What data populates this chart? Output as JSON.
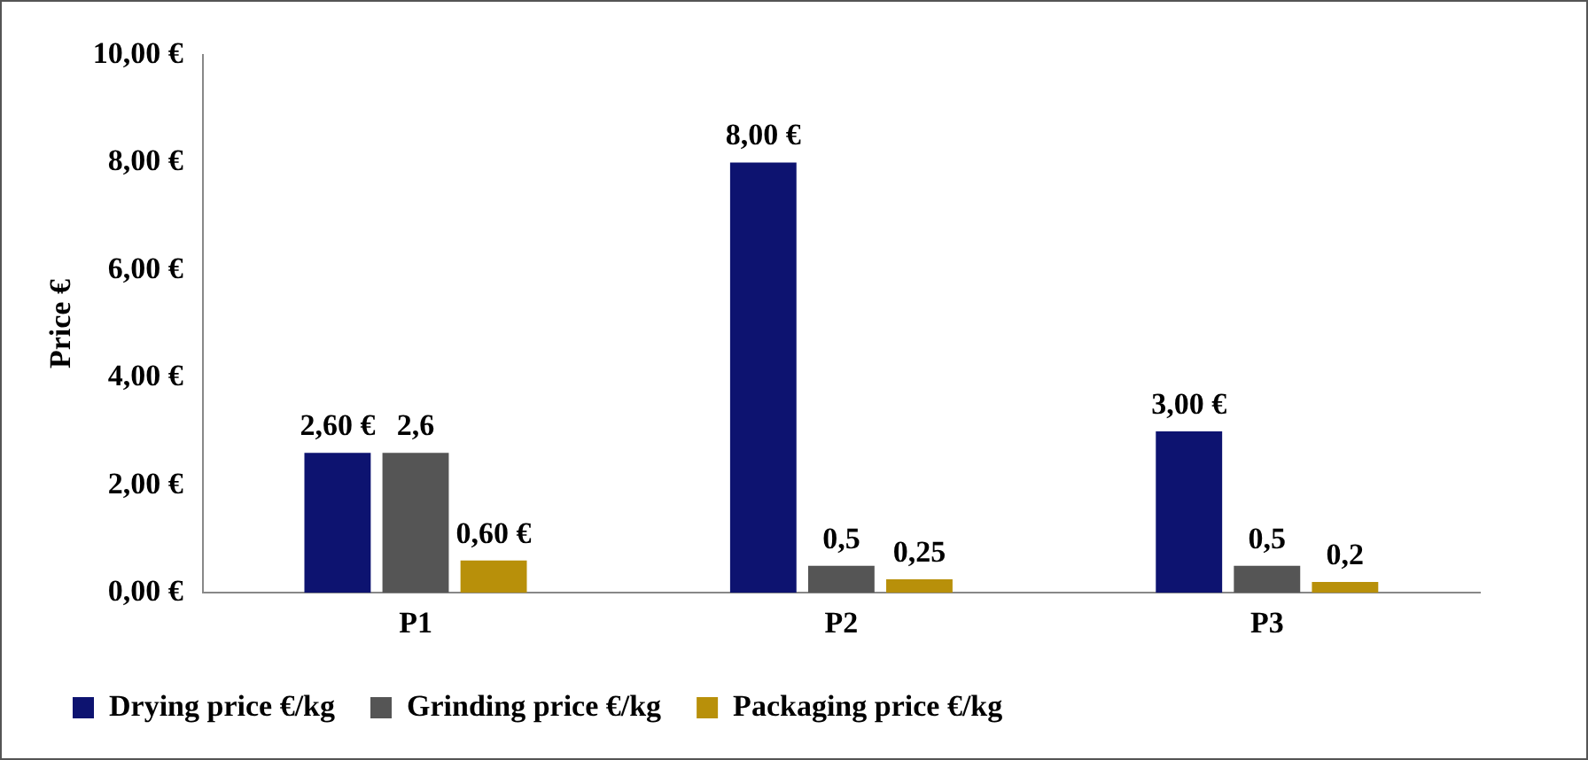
{
  "chart_data": {
    "type": "bar",
    "ylabel": "Price €",
    "categories": [
      "P1",
      "P2",
      "P3"
    ],
    "series": [
      {
        "name": "Drying price €/kg",
        "color": "#0d1370",
        "values": [
          2.6,
          8,
          3
        ],
        "value_labels": [
          "2,60 €",
          "8,00 €",
          "3,00 €"
        ]
      },
      {
        "name": "Grinding price €/kg",
        "color": "#555555",
        "values": [
          2.6,
          0.5,
          0.5
        ],
        "value_labels": [
          "2,6",
          "0,5",
          "0,5"
        ]
      },
      {
        "name": "Packaging price €/kg",
        "color": "#b8900a",
        "values": [
          0.6,
          0.25,
          0.2
        ],
        "value_labels": [
          "0,60 €",
          "0,25",
          "0,2"
        ]
      }
    ],
    "ylim": [
      0,
      10
    ],
    "yticks": [
      {
        "value": 0,
        "label": "0,00 €"
      },
      {
        "value": 2,
        "label": "2,00 €"
      },
      {
        "value": 4,
        "label": "4,00 €"
      },
      {
        "value": 6,
        "label": "6,00 €"
      },
      {
        "value": 8,
        "label": "8,00 €"
      },
      {
        "value": 10,
        "label": "10,00 €"
      }
    ],
    "grid": false,
    "legend": "bottom"
  }
}
